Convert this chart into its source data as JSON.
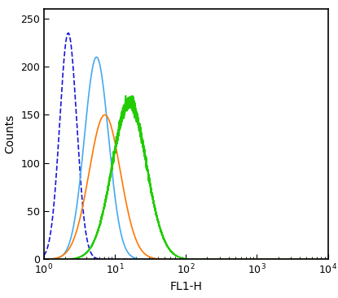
{
  "title": "",
  "xlabel": "FL1-H",
  "ylabel": "Counts",
  "xlim": [
    1,
    10000
  ],
  "ylim": [
    0,
    260
  ],
  "yticks": [
    0,
    50,
    100,
    150,
    200,
    250
  ],
  "curves": [
    {
      "color": "#1515dd",
      "style": "dashed",
      "peak_x": 2.2,
      "peak_y": 235,
      "sigma": 0.12,
      "noise": 0.0
    },
    {
      "color": "#45aaee",
      "style": "solid",
      "peak_x": 5.5,
      "peak_y": 210,
      "sigma": 0.17,
      "noise": 0.0
    },
    {
      "color": "#ff7700",
      "style": "solid",
      "peak_x": 7.2,
      "peak_y": 150,
      "sigma": 0.22,
      "noise": 0.0
    },
    {
      "color": "#22cc00",
      "style": "solid",
      "peak_x": 16.0,
      "peak_y": 163,
      "sigma": 0.24,
      "noise": 3.5
    }
  ],
  "background_color": "#ffffff",
  "axes_color": "#000000",
  "figsize": [
    4.15,
    3.67
  ],
  "dpi": 100
}
